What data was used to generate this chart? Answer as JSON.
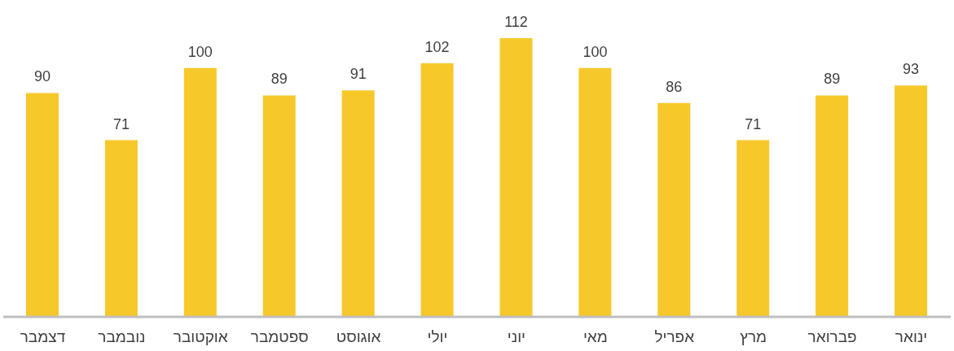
{
  "chart_data": {
    "type": "bar",
    "categories": [
      "דצמבר",
      "נובמבר",
      "אוקטובר",
      "ספטמבר",
      "אוגוסט",
      "יולי",
      "יוני",
      "מאי",
      "אפריל",
      "מרץ",
      "פברואר",
      "ינואר"
    ],
    "values": [
      90,
      71,
      100,
      89,
      91,
      102,
      112,
      100,
      86,
      71,
      89,
      93
    ],
    "color": "#f7c82a",
    "data_labels": true
  }
}
